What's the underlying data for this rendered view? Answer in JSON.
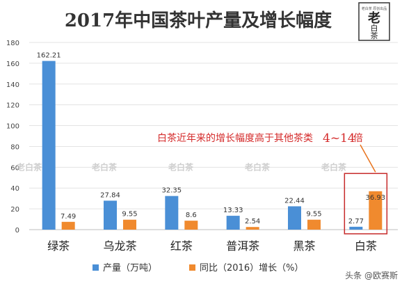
{
  "chart_data": {
    "type": "bar",
    "title": "2017年中国茶叶产量及增长幅度",
    "categories": [
      "绿茶",
      "乌龙茶",
      "红茶",
      "普洱茶",
      "黑茶",
      "白茶"
    ],
    "series": [
      {
        "name": "产量（万吨）",
        "color": "#4a8fd6",
        "values": [
          162.21,
          27.84,
          32.35,
          13.33,
          22.44,
          2.77
        ]
      },
      {
        "name": "同比（2016）增长（%）",
        "color": "#f08a2e",
        "values": [
          7.49,
          9.55,
          8.6,
          2.54,
          9.55,
          36.93
        ]
      }
    ],
    "ylim": [
      0,
      180
    ],
    "yticks": [
      0,
      20,
      40,
      60,
      80,
      100,
      120,
      140,
      160,
      180
    ],
    "grid": true,
    "legend": "bottom-center",
    "annotation": {
      "text_main": "白茶近年来的增长幅度高于其他茶类",
      "text_range": "4~14",
      "text_unit": "倍",
      "color": "#d42a2a",
      "target_category": "白茶"
    },
    "highlight": {
      "category": "白茶",
      "color": "#c62828"
    }
  },
  "branding": {
    "seal_text": "老白茶",
    "seal_top_line": "老白茶 原创出品",
    "watermark_text": "老白茶",
    "source_credit": "头条 @欧赛斯"
  }
}
